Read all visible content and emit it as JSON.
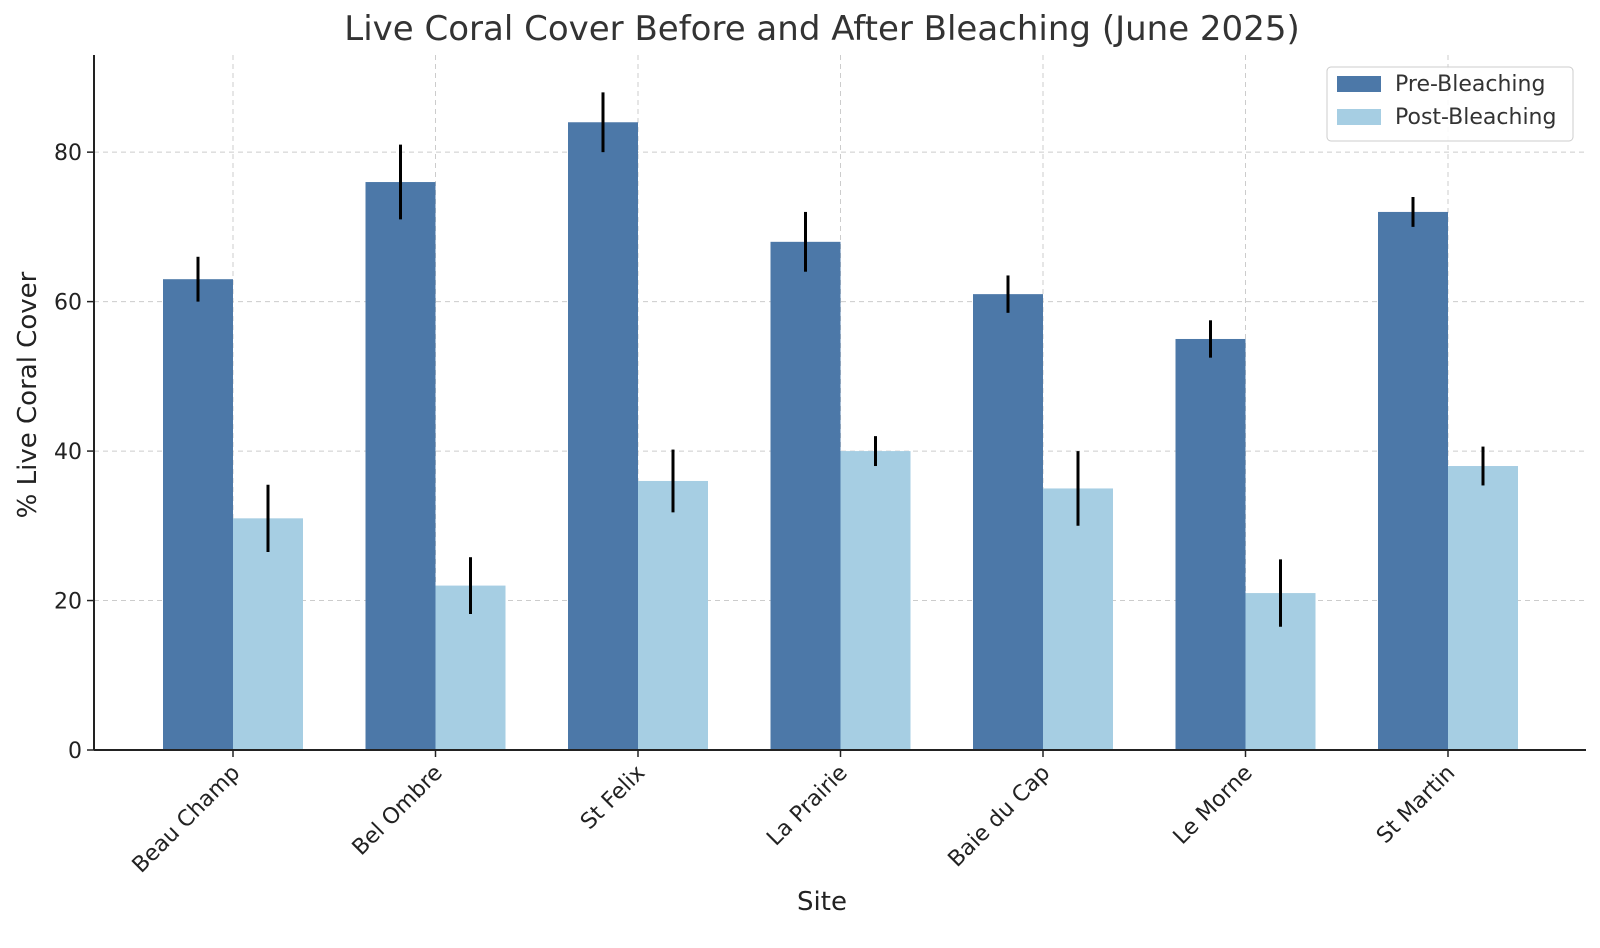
{
  "chart_data": {
    "type": "bar",
    "title": "Live Coral Cover Before and After Bleaching (June 2025)",
    "xlabel": "Site",
    "ylabel": "% Live Coral Cover",
    "ylim": [
      0,
      93
    ],
    "yticks": [
      0,
      20,
      40,
      60,
      80
    ],
    "grid": true,
    "legend_position": "top-right",
    "categories": [
      "Beau Champ",
      "Bel Ombre",
      "St Felix",
      "La Prairie",
      "Baie du Cap",
      "Le Morne",
      "St Martin"
    ],
    "series": [
      {
        "name": "Pre-Bleaching",
        "color": "#4c78a8",
        "values": [
          63,
          76,
          84,
          68,
          61,
          55,
          72
        ],
        "errors": [
          3,
          5,
          4,
          4,
          2.5,
          2.5,
          2
        ]
      },
      {
        "name": "Post-Bleaching",
        "color": "#a6cee3",
        "values": [
          31,
          22,
          36,
          40,
          35,
          21,
          38
        ],
        "errors": [
          4.5,
          3.8,
          4.2,
          2,
          5,
          4.5,
          2.6
        ]
      }
    ]
  }
}
